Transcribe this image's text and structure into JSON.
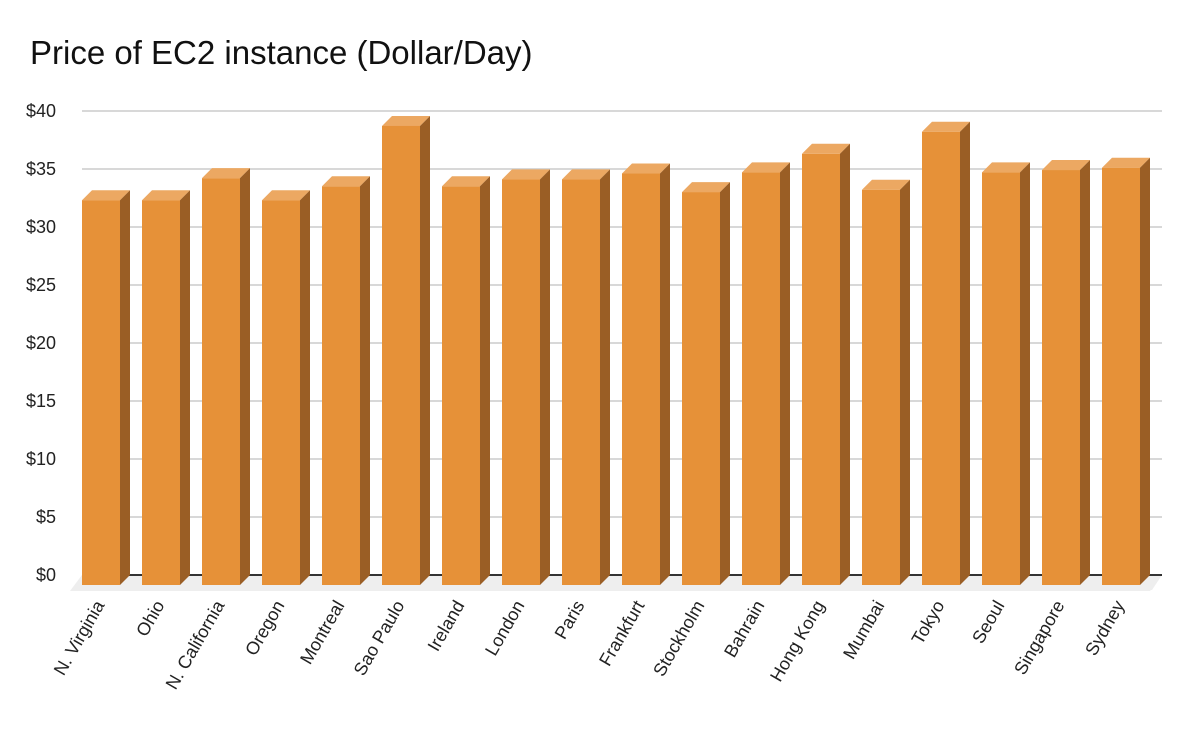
{
  "title": "Price of EC2 instance (Dollar/Day)",
  "colors": {
    "front": "#E69138",
    "top": "#ECA862",
    "side": "#9A5E25",
    "grid": "#CCCCCC",
    "floor": "#EEEEEE",
    "axis": "#333333"
  },
  "chart_data": {
    "type": "bar",
    "title": "Price of EC2 instance (Dollar/Day)",
    "xlabel": "",
    "ylabel": "",
    "ylim": [
      0,
      40
    ],
    "y_ticks": [
      "$0",
      "$5",
      "$10",
      "$15",
      "$20",
      "$25",
      "$30",
      "$35",
      "$40"
    ],
    "grid": true,
    "legend": "none",
    "style": "3d",
    "categories": [
      "N. Virginia",
      "Ohio",
      "N. California",
      "Oregon",
      "Montreal",
      "Sao Paulo",
      "Ireland",
      "London",
      "Paris",
      "Frankfurt",
      "Stockholm",
      "Bahrain",
      "Hong Kong",
      "Mumbai",
      "Tokyo",
      "Seoul",
      "Singapore",
      "Sydney"
    ],
    "values": [
      33.0,
      33.0,
      34.9,
      33.0,
      34.2,
      39.4,
      34.2,
      34.8,
      34.8,
      35.3,
      33.7,
      35.4,
      37.0,
      33.9,
      38.9,
      35.4,
      35.6,
      35.8
    ]
  }
}
